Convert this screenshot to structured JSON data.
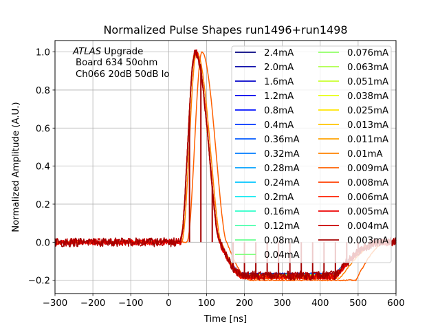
{
  "chart_data": {
    "type": "line",
    "title": "Normalized Pulse Shapes run1496+run1498",
    "xlabel": "Time [ns]",
    "ylabel": "Normalized Amplitude (A.U.)",
    "xlim": [
      -300,
      600
    ],
    "ylim": [
      -0.27,
      1.06
    ],
    "xticks": [
      -300,
      -200,
      -100,
      0,
      100,
      200,
      300,
      400,
      500,
      600
    ],
    "xtick_labels": [
      "−300",
      "−200",
      "−100",
      "0",
      "100",
      "200",
      "300",
      "400",
      "500",
      "600"
    ],
    "yticks": [
      -0.2,
      0.0,
      0.2,
      0.4,
      0.6,
      0.8,
      1.0
    ],
    "ytick_labels": [
      "−0.2",
      "0.0",
      "0.2",
      "0.4",
      "0.6",
      "0.8",
      "1.0"
    ],
    "grid": true,
    "legend_placement": "upper-right",
    "legend_columns": 2,
    "annotation": {
      "line1_italic": "ATLAS",
      "line1_rest": " Upgrade",
      "line2": "Board 634 50ohm",
      "line3": "Ch066 20dB 50dB  lo"
    },
    "pulse_model": {
      "baseline": 0.0,
      "peak_value": 1.0,
      "peak_time_ns": 70,
      "rise_start_ns": 30,
      "zero_crossing_ns": 135,
      "undershoot_value": -0.17,
      "undershoot_start_ns": 200,
      "recovery_start_ns": 440,
      "recovery_end_ns": 560
    },
    "series": [
      {
        "name": "2.4mA",
        "color": "#00007f",
        "peak_shift_ns": 0,
        "undershoot": -0.165
      },
      {
        "name": "2.0mA",
        "color": "#0000a4",
        "peak_shift_ns": 0,
        "undershoot": -0.165
      },
      {
        "name": "1.6mA",
        "color": "#0000c8",
        "peak_shift_ns": 0,
        "undershoot": -0.166
      },
      {
        "name": "1.2mA",
        "color": "#0000ed",
        "peak_shift_ns": 0,
        "undershoot": -0.166
      },
      {
        "name": "0.8mA",
        "color": "#0010ff",
        "peak_shift_ns": 0,
        "undershoot": -0.167
      },
      {
        "name": "0.4mA",
        "color": "#0034ff",
        "peak_shift_ns": 0,
        "undershoot": -0.167
      },
      {
        "name": "0.36mA",
        "color": "#0058ff",
        "peak_shift_ns": 0,
        "undershoot": -0.168
      },
      {
        "name": "0.32mA",
        "color": "#007cff",
        "peak_shift_ns": 0,
        "undershoot": -0.168
      },
      {
        "name": "0.28mA",
        "color": "#00a0ff",
        "peak_shift_ns": 0,
        "undershoot": -0.169
      },
      {
        "name": "0.24mA",
        "color": "#00c4ff",
        "peak_shift_ns": 0,
        "undershoot": -0.169
      },
      {
        "name": "0.2mA",
        "color": "#0de8f0",
        "peak_shift_ns": 0,
        "undershoot": -0.17
      },
      {
        "name": "0.16mA",
        "color": "#2cffca",
        "peak_shift_ns": 0,
        "undershoot": -0.17
      },
      {
        "name": "0.12mA",
        "color": "#4affad",
        "peak_shift_ns": 0,
        "undershoot": -0.171
      },
      {
        "name": "0.08mA",
        "color": "#66ff90",
        "peak_shift_ns": 0,
        "undershoot": -0.172
      },
      {
        "name": "0.04mA",
        "color": "#7dff7a",
        "peak_shift_ns": 0,
        "undershoot": -0.173
      },
      {
        "name": "0.076mA",
        "color": "#90ff66",
        "peak_shift_ns": 0,
        "undershoot": -0.174
      },
      {
        "name": "0.063mA",
        "color": "#adff4a",
        "peak_shift_ns": 0,
        "undershoot": -0.175
      },
      {
        "name": "0.051mA",
        "color": "#caff2c",
        "peak_shift_ns": 0,
        "undershoot": -0.176
      },
      {
        "name": "0.038mA",
        "color": "#e7ff0f",
        "peak_shift_ns": 0,
        "undershoot": -0.177
      },
      {
        "name": "0.025mA",
        "color": "#ffe500",
        "peak_shift_ns": 0,
        "undershoot": -0.178
      },
      {
        "name": "0.013mA",
        "color": "#ffc400",
        "peak_shift_ns": 0,
        "undershoot": -0.18
      },
      {
        "name": "0.011mA",
        "color": "#ffa300",
        "peak_shift_ns": 0,
        "undershoot": -0.182
      },
      {
        "name": "0.01mA",
        "color": "#ff8200",
        "peak_shift_ns": 4,
        "undershoot": -0.19
      },
      {
        "name": "0.009mA",
        "color": "#ff6000",
        "peak_shift_ns": 18,
        "undershoot": -0.2
      },
      {
        "name": "0.008mA",
        "color": "#ff3f00",
        "peak_shift_ns": 0,
        "undershoot": -0.19
      },
      {
        "name": "0.006mA",
        "color": "#ff1e00",
        "peak_shift_ns": 0,
        "undershoot": -0.185
      },
      {
        "name": "0.005mA",
        "color": "#ed0000",
        "peak_shift_ns": 0,
        "undershoot": -0.18
      },
      {
        "name": "0.004mA",
        "color": "#c80000",
        "peak_shift_ns": 0,
        "undershoot": -0.178
      },
      {
        "name": "0.003mA",
        "color": "#a40000",
        "peak_shift_ns": 0,
        "undershoot": -0.175
      }
    ]
  }
}
